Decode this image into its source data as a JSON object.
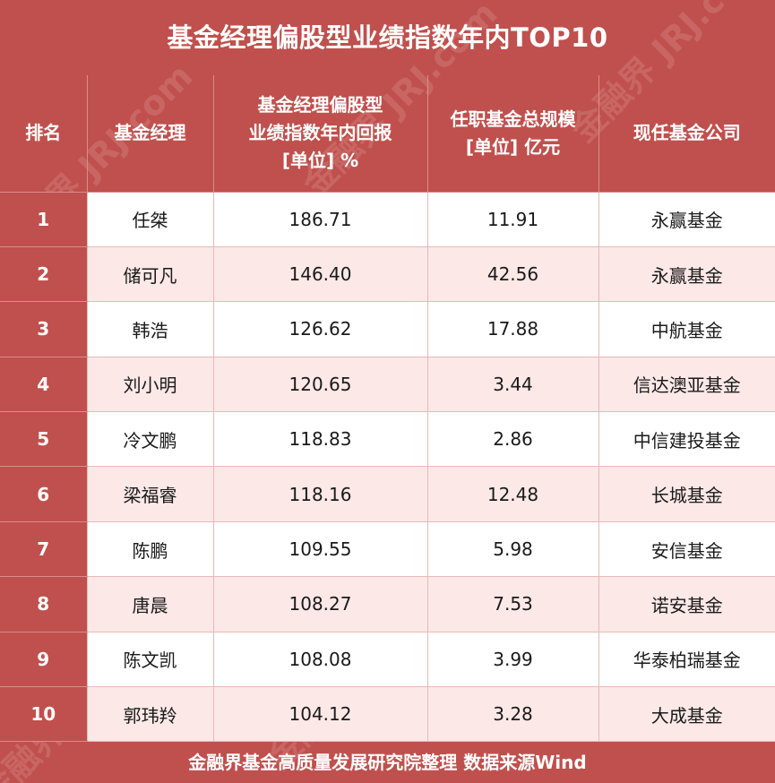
{
  "title": "基金经理偏股型业绩指数年内TOP10",
  "headers": {
    "rank": "排名",
    "manager": "基金经理",
    "return_line1": "基金经理偏股型",
    "return_line2": "业绩指数年内回报",
    "return_line3": "[单位] %",
    "scale_line1": "任职基金总规模",
    "scale_line2": "[单位] 亿元",
    "company": "现任基金公司"
  },
  "rows": [
    {
      "rank": "1",
      "manager": "任桀",
      "return": "186.71",
      "scale": "11.91",
      "company": "永赢基金"
    },
    {
      "rank": "2",
      "manager": "储可凡",
      "return": "146.40",
      "scale": "42.56",
      "company": "永赢基金"
    },
    {
      "rank": "3",
      "manager": "韩浩",
      "return": "126.62",
      "scale": "17.88",
      "company": "中航基金"
    },
    {
      "rank": "4",
      "manager": "刘小明",
      "return": "120.65",
      "scale": "3.44",
      "company": "信达澳亚基金"
    },
    {
      "rank": "5",
      "manager": "冷文鹏",
      "return": "118.83",
      "scale": "2.86",
      "company": "中信建投基金"
    },
    {
      "rank": "6",
      "manager": "梁福睿",
      "return": "118.16",
      "scale": "12.48",
      "company": "长城基金"
    },
    {
      "rank": "7",
      "manager": "陈鹏",
      "return": "109.55",
      "scale": "5.98",
      "company": "安信基金"
    },
    {
      "rank": "8",
      "manager": "唐晨",
      "return": "108.27",
      "scale": "7.53",
      "company": "诺安基金"
    },
    {
      "rank": "9",
      "manager": "陈文凯",
      "return": "108.08",
      "scale": "3.99",
      "company": "华泰柏瑞基金"
    },
    {
      "rank": "10",
      "manager": "郭玮羚",
      "return": "104.12",
      "scale": "3.28",
      "company": "大成基金"
    }
  ],
  "footer": "金融界基金高质量发展研究院整理 数据来源Wind",
  "watermark": "金融界 JRJ.com",
  "colors": {
    "header_bg": "#c0504d",
    "row_odd": "#ffffff",
    "row_even": "#fbe8e7",
    "grid_line": "#e7b9b8"
  }
}
